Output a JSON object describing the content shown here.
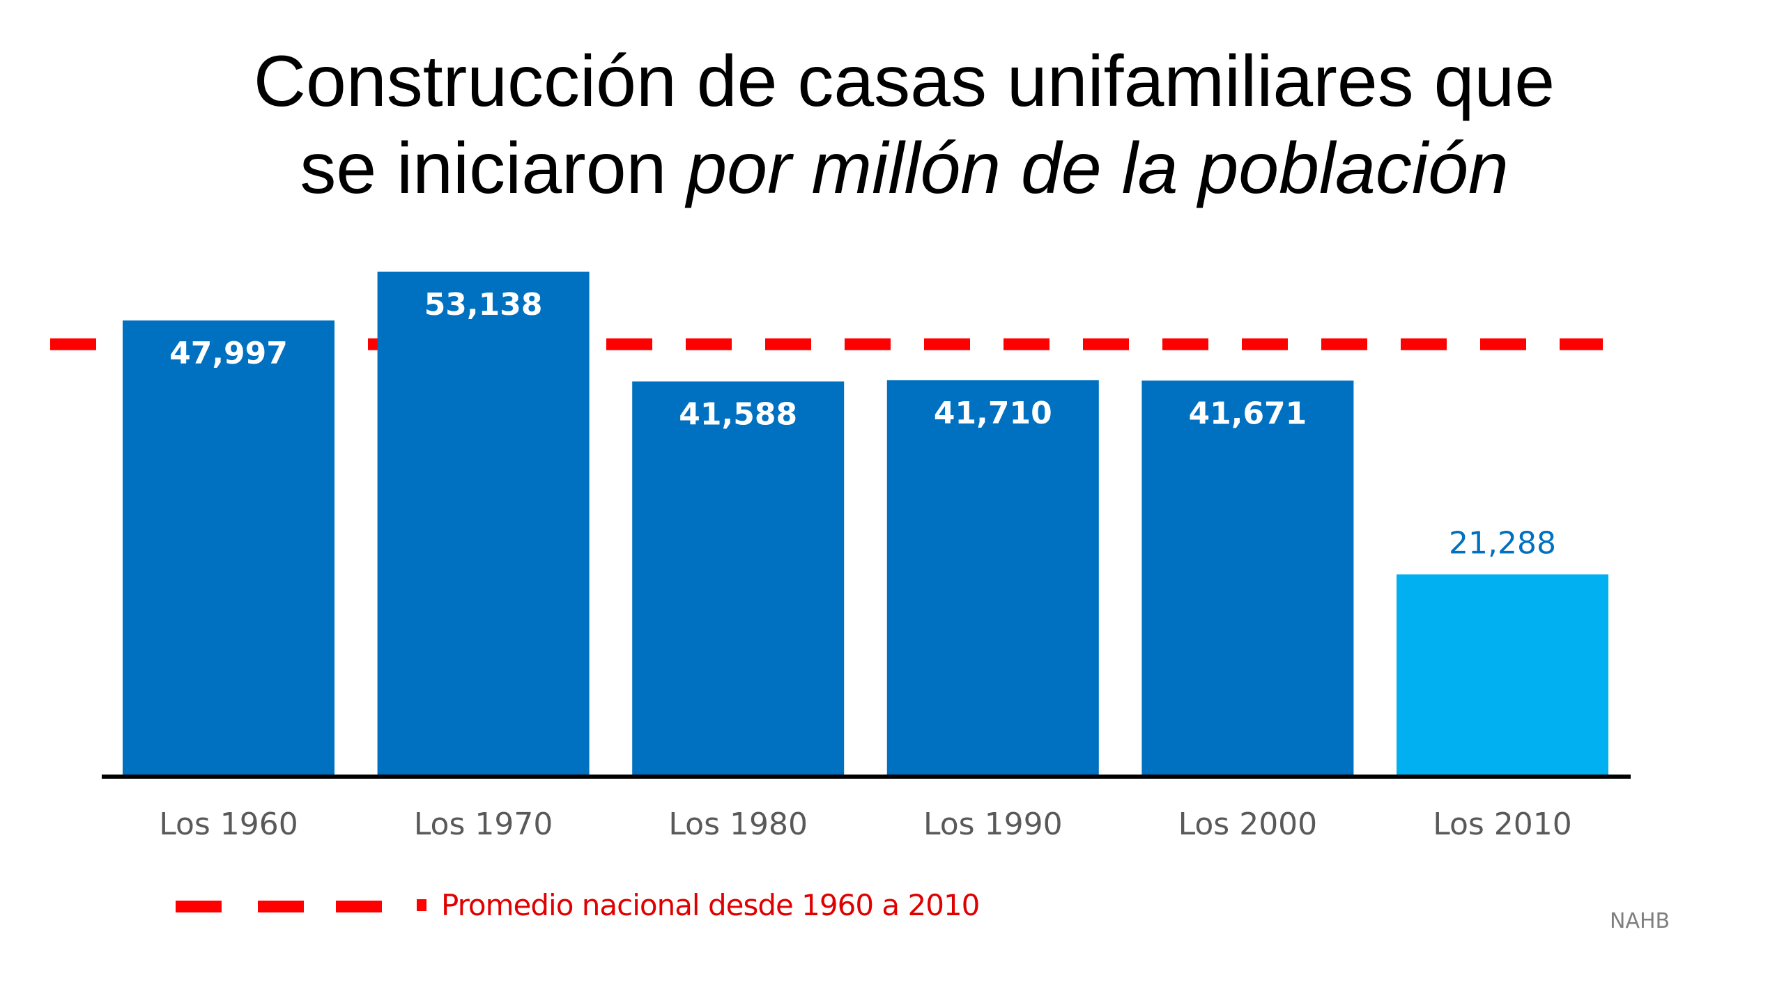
{
  "chart_data": {
    "type": "bar",
    "title_line1": "Construcción de casas unifamiliares que",
    "title_line2_plain": "se iniciaron ",
    "title_line2_italic": "por millón de la población",
    "categories": [
      "Los 1960",
      "Los 1970",
      "Los 1980",
      "Los 1990",
      "Los 2000",
      "Los 2010"
    ],
    "values": [
      47997,
      53138,
      41588,
      41710,
      41671,
      21288
    ],
    "value_labels": [
      "47,997",
      "53,138",
      "41,588",
      "41,710",
      "41,671",
      "21,288"
    ],
    "bar_colors": [
      "#0070c0",
      "#0070c0",
      "#0070c0",
      "#0070c0",
      "#0070c0",
      "#00b0f0"
    ],
    "reference_line": {
      "label": "Promedio nacional desde 1960 a 2010",
      "value": 45500,
      "color": "#ff0000",
      "style": "dashed"
    },
    "ylim": [
      0,
      53138
    ],
    "grid": false,
    "legend_position": "bottom-left",
    "source": "NAHB"
  }
}
